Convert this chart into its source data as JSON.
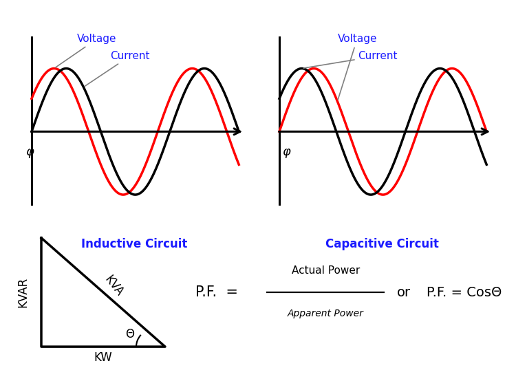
{
  "bg_color": "#ffffff",
  "voltage_color": "#ff0000",
  "current_color": "#000000",
  "label_color": "#1a1aff",
  "triangle_color": "#000000",
  "inductive_label": "Inductive Circuit",
  "capacitive_label": "Capacitive Circuit",
  "voltage_label": "Voltage",
  "current_label": "Current",
  "phi_label": "φ",
  "kva_label": "KVA",
  "kvar_label": "KVAR",
  "kw_label": "KW",
  "theta_label": "Θ",
  "pf_formula_text": "P.F.  =",
  "pf_numerator": "Actual Power",
  "pf_denominator": "Apparent Power",
  "pf_or": "or",
  "pf_cos": "P.F. = CosΘ",
  "inductive_phase_shift": 0.55,
  "capacitive_phase_shift": 0.55
}
